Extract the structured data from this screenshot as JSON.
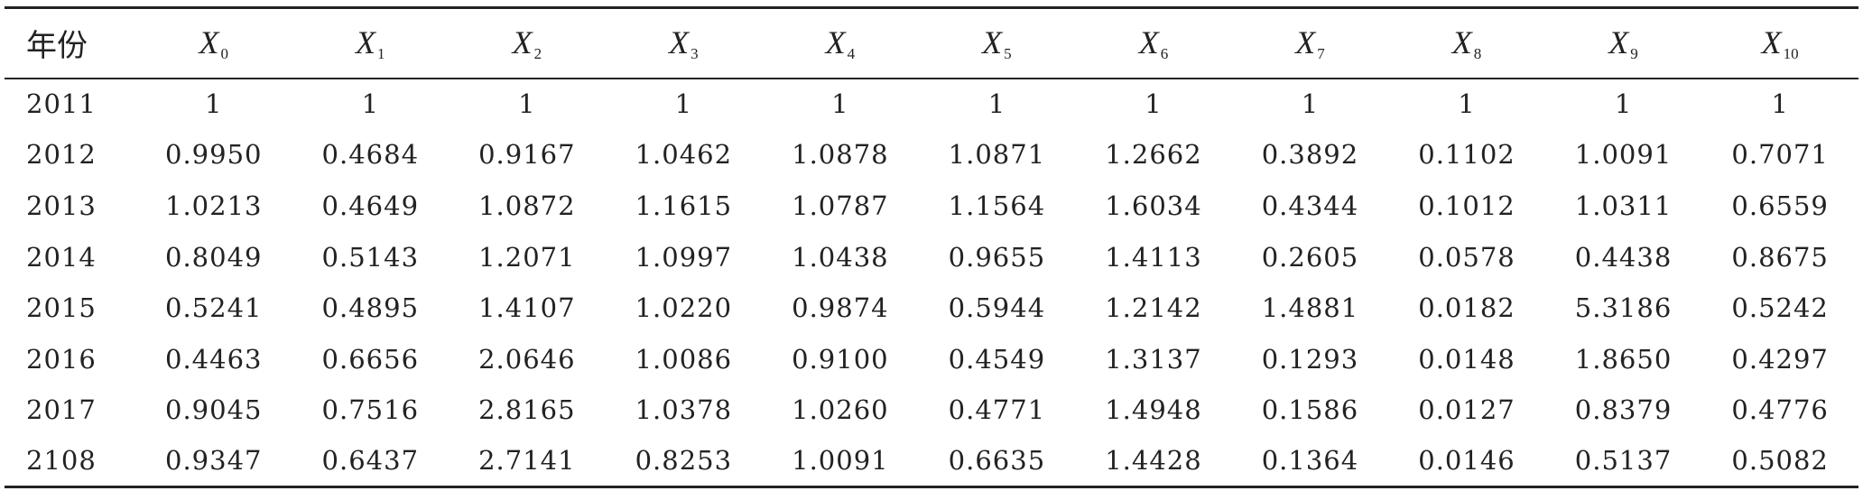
{
  "table": {
    "header": {
      "year_label": "年份",
      "columns": [
        {
          "base": "X",
          "sub": "0"
        },
        {
          "base": "X",
          "sub": "1"
        },
        {
          "base": "X",
          "sub": "2"
        },
        {
          "base": "X",
          "sub": "3"
        },
        {
          "base": "X",
          "sub": "4"
        },
        {
          "base": "X",
          "sub": "5"
        },
        {
          "base": "X",
          "sub": "6"
        },
        {
          "base": "X",
          "sub": "7"
        },
        {
          "base": "X",
          "sub": "8"
        },
        {
          "base": "X",
          "sub": "9"
        },
        {
          "base": "X",
          "sub": "10"
        }
      ]
    },
    "rows": [
      {
        "year": "2011",
        "values": [
          "1",
          "1",
          "1",
          "1",
          "1",
          "1",
          "1",
          "1",
          "1",
          "1",
          "1"
        ]
      },
      {
        "year": "2012",
        "values": [
          "0.9950",
          "0.4684",
          "0.9167",
          "1.0462",
          "1.0878",
          "1.0871",
          "1.2662",
          "0.3892",
          "0.1102",
          "1.0091",
          "0.7071"
        ]
      },
      {
        "year": "2013",
        "values": [
          "1.0213",
          "0.4649",
          "1.0872",
          "1.1615",
          "1.0787",
          "1.1564",
          "1.6034",
          "0.4344",
          "0.1012",
          "1.0311",
          "0.6559"
        ]
      },
      {
        "year": "2014",
        "values": [
          "0.8049",
          "0.5143",
          "1.2071",
          "1.0997",
          "1.0438",
          "0.9655",
          "1.4113",
          "0.2605",
          "0.0578",
          "0.4438",
          "0.8675"
        ]
      },
      {
        "year": "2015",
        "values": [
          "0.5241",
          "0.4895",
          "1.4107",
          "1.0220",
          "0.9874",
          "0.5944",
          "1.2142",
          "1.4881",
          "0.0182",
          "5.3186",
          "0.5242"
        ]
      },
      {
        "year": "2016",
        "values": [
          "0.4463",
          "0.6656",
          "2.0646",
          "1.0086",
          "0.9100",
          "0.4549",
          "1.3137",
          "0.1293",
          "0.0148",
          "1.8650",
          "0.4297"
        ]
      },
      {
        "year": "2017",
        "values": [
          "0.9045",
          "0.7516",
          "2.8165",
          "1.0378",
          "1.0260",
          "0.4771",
          "1.4948",
          "0.1586",
          "0.0127",
          "0.8379",
          "0.4776"
        ]
      },
      {
        "year": "2108",
        "values": [
          "0.9347",
          "0.6437",
          "2.7141",
          "0.8253",
          "1.0091",
          "0.6635",
          "1.4428",
          "0.1364",
          "0.0146",
          "0.5137",
          "0.5082"
        ]
      }
    ]
  }
}
